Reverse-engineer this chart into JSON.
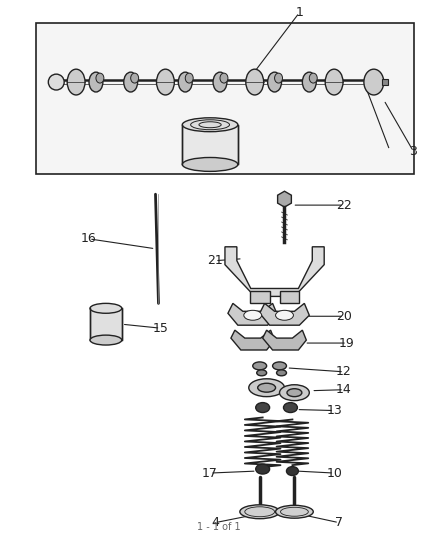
{
  "bg_color": "#ffffff",
  "fig_width": 4.38,
  "fig_height": 5.33,
  "line_color": "#222222",
  "fill_light": "#e8e8e8",
  "fill_mid": "#cccccc",
  "fill_dark": "#888888"
}
